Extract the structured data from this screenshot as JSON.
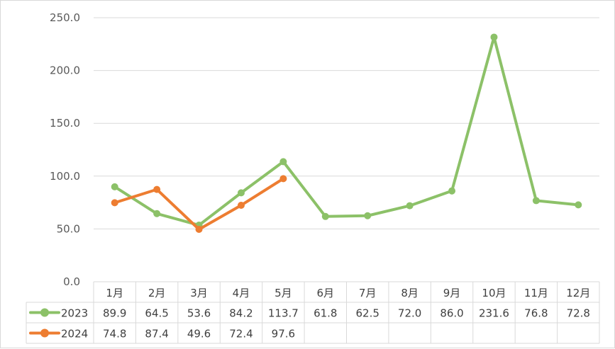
{
  "chart_data": {
    "type": "line",
    "title": "",
    "xlabel": "",
    "ylabel": "",
    "categories": [
      "1月",
      "2月",
      "3月",
      "4月",
      "5月",
      "6月",
      "7月",
      "8月",
      "9月",
      "10月",
      "11月",
      "12月"
    ],
    "y_ticks": [
      "0.0",
      "50.0",
      "100.0",
      "150.0",
      "200.0",
      "250.0"
    ],
    "ylim": [
      0,
      250
    ],
    "grid": true,
    "legend": "data-table",
    "series": [
      {
        "name": "2023",
        "color": "#8cc168",
        "values": [
          89.9,
          64.5,
          53.6,
          84.2,
          113.7,
          61.8,
          62.5,
          72.0,
          86.0,
          231.6,
          76.8,
          72.8
        ],
        "labels": [
          "89.9",
          "64.5",
          "53.6",
          "84.2",
          "113.7",
          "61.8",
          "62.5",
          "72.0",
          "86.0",
          "231.6",
          "76.8",
          "72.8"
        ]
      },
      {
        "name": "2024",
        "color": "#ed7d31",
        "values": [
          74.8,
          87.4,
          49.6,
          72.4,
          97.6,
          null,
          null,
          null,
          null,
          null,
          null,
          null
        ],
        "labels": [
          "74.8",
          "87.4",
          "49.6",
          "72.4",
          "97.6",
          "",
          "",
          "",
          "",
          "",
          "",
          ""
        ]
      }
    ]
  }
}
